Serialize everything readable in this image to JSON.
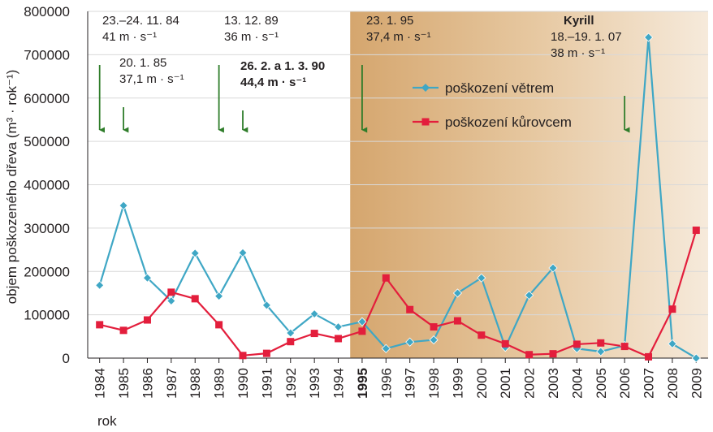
{
  "chart_data": {
    "type": "line",
    "ylabel": "objem poškozeného dřeva (m³ · rok⁻¹)",
    "xlabel": "rok",
    "ylim": [
      0,
      800000
    ],
    "yticks": [
      0,
      100000,
      200000,
      300000,
      400000,
      500000,
      600000,
      700000,
      800000
    ],
    "categories": [
      "1984",
      "1985",
      "1986",
      "1987",
      "1988",
      "1989",
      "1990",
      "1991",
      "1992",
      "1993",
      "1994",
      "1995",
      "1996",
      "1997",
      "1998",
      "1999",
      "2000",
      "2001",
      "2002",
      "2003",
      "2004",
      "2005",
      "2006",
      "2007",
      "2008",
      "2009"
    ],
    "highlight_category": "1995",
    "shaded_from": "1995",
    "series": [
      {
        "name": "poškození větrem",
        "color": "#3fa7c5",
        "marker": "diamond",
        "values": [
          168000,
          352000,
          185000,
          132000,
          242000,
          143000,
          243000,
          122000,
          58000,
          102000,
          72000,
          84000,
          22000,
          37000,
          42000,
          150000,
          185000,
          25000,
          145000,
          208000,
          22000,
          15000,
          29000,
          740000,
          33000,
          0
        ]
      },
      {
        "name": "poškození kůrovcem",
        "color": "#e31e3c",
        "marker": "square",
        "values": [
          77000,
          64000,
          88000,
          152000,
          137000,
          77000,
          6000,
          11000,
          38000,
          57000,
          45000,
          62000,
          185000,
          112000,
          72000,
          86000,
          53000,
          33000,
          8000,
          10000,
          32000,
          35000,
          27000,
          3000,
          113000,
          295000
        ]
      }
    ],
    "annotations": [
      {
        "year": "1984",
        "lines": [
          "23.–24. 11. 84",
          "41 m · s⁻¹"
        ],
        "bold": false
      },
      {
        "year": "1985",
        "lines": [
          "20. 1. 85",
          "37,1 m · s⁻¹"
        ],
        "bold": false
      },
      {
        "year": "1989",
        "lines": [
          "13. 12. 89",
          "36 m · s⁻¹"
        ],
        "bold": false
      },
      {
        "year": "1990",
        "lines": [
          "26. 2. a 1. 3. 90",
          "44,4 m · s⁻¹"
        ],
        "bold": true
      },
      {
        "year": "1995",
        "lines": [
          "23. 1. 95",
          "37,4 m · s⁻¹"
        ],
        "bold": false
      },
      {
        "year": "2006",
        "lines": [
          "Kyrill",
          "18.–19. 1. 07",
          "38 m · s⁻¹"
        ],
        "bold": false,
        "first_bold": true
      }
    ],
    "grid": true,
    "legend_position": "top-right"
  }
}
